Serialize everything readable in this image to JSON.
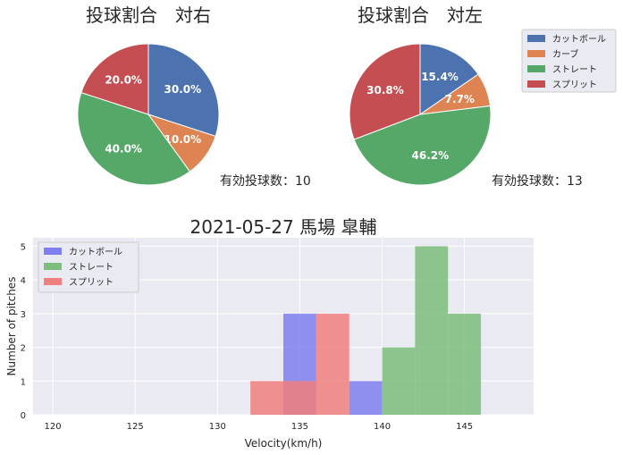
{
  "figure_title": "2021-05-27 馬場 皐輔",
  "colors": {
    "cutter": "#4c72b0",
    "curve": "#dd8452",
    "straight": "#55a868",
    "split": "#c44e52",
    "hist_cutter": "#7f7ff0",
    "hist_straight": "#7dbd7d",
    "hist_split": "#f07f7f",
    "axes_bg": "#eaeaf2",
    "grid": "#ffffff"
  },
  "chart_data": [
    {
      "type": "pie",
      "title": "投球割合　対右",
      "labels": [
        "カットボール",
        "カーブ",
        "ストレート",
        "スプリット"
      ],
      "values": [
        3,
        1,
        4,
        2
      ],
      "percent_labels": [
        "30.0%",
        "10.0%",
        "40.0%",
        "20.0%"
      ],
      "note": "有効投球数：10"
    },
    {
      "type": "pie",
      "title": "投球割合　対左",
      "labels": [
        "カットボール",
        "カーブ",
        "ストレート",
        "スプリット"
      ],
      "values": [
        2,
        1,
        6,
        4
      ],
      "percent_labels": [
        "15.4%",
        "7.7%",
        "46.2%",
        "30.8%"
      ],
      "note": "有効投球数：13"
    },
    {
      "type": "bar",
      "subtype": "histogram",
      "title": "2021-05-27 馬場 皐輔",
      "xlabel": "Velocity(km/h)",
      "ylabel": "Number of pitches",
      "xlim": [
        118.8,
        149.2
      ],
      "ylim": [
        0,
        5.25
      ],
      "xticks": [
        120,
        125,
        130,
        135,
        140,
        145
      ],
      "yticks": [
        0,
        1,
        2,
        3,
        4,
        5
      ],
      "grid": true,
      "legend_position": "top-left",
      "series": [
        {
          "name": "カットボール",
          "bins": [
            [
              134,
              136,
              3
            ],
            [
              136,
              138,
              0
            ],
            [
              138,
              140,
              1
            ]
          ]
        },
        {
          "name": "ストレート",
          "bins": [
            [
              140,
              142,
              2
            ],
            [
              142,
              144,
              5
            ],
            [
              144,
              146,
              3
            ]
          ]
        },
        {
          "name": "スプリット",
          "bins": [
            [
              132,
              134,
              1
            ],
            [
              134,
              136,
              1
            ],
            [
              136,
              138,
              3
            ]
          ]
        }
      ]
    }
  ],
  "legends": {
    "pie": [
      "カットボール",
      "カーブ",
      "ストレート",
      "スプリット"
    ],
    "hist": [
      "カットボール",
      "ストレート",
      "スプリット"
    ]
  }
}
